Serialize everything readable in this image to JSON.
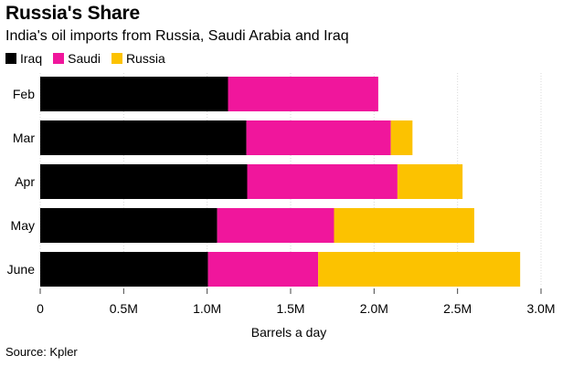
{
  "chart_data": {
    "type": "bar",
    "orientation": "horizontal",
    "stacked": true,
    "title": "Russia's Share",
    "subtitle": "India's oil imports from Russia, Saudi Arabia and Iraq",
    "categories": [
      "Feb",
      "Mar",
      "Apr",
      "May",
      "June"
    ],
    "series": [
      {
        "name": "Iraq",
        "color": "#000000",
        "values": [
          1125000,
          1235000,
          1240000,
          1060000,
          1005000
        ]
      },
      {
        "name": "Saudi",
        "color": "#f0169c",
        "values": [
          900000,
          865000,
          900000,
          700000,
          660000
        ]
      },
      {
        "name": "Russia",
        "color": "#fcc200",
        "values": [
          0,
          130000,
          390000,
          840000,
          1210000
        ]
      }
    ],
    "xlabel": "Barrels a day",
    "ylabel": "",
    "xlim": [
      0,
      3000000
    ],
    "xticks": [
      0,
      500000,
      1000000,
      1500000,
      2000000,
      2500000,
      3000000
    ],
    "xtick_labels": [
      "0",
      "0.5M",
      "1.0M",
      "1.5M",
      "2.0M",
      "2.5M",
      "3.0M"
    ],
    "legend_position": "top-left",
    "source": "Source: Kpler"
  }
}
